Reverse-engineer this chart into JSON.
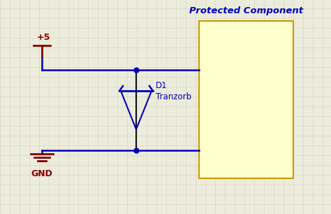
{
  "bg_color": "#ececdc",
  "grid_color": "#d8d8c8",
  "wire_color": "#0000bb",
  "component_color": "#0000bb",
  "power_color": "#880000",
  "box_fill": "#ffffcc",
  "box_edge": "#cc9900",
  "title": "Protected Component",
  "title_color": "#0000bb",
  "vcc_label": "+5",
  "gnd_label": "GND",
  "d1_label": "D1",
  "tranzorb_label": "Tranzorb",
  "figw": 4.74,
  "figh": 3.06,
  "dpi": 100
}
